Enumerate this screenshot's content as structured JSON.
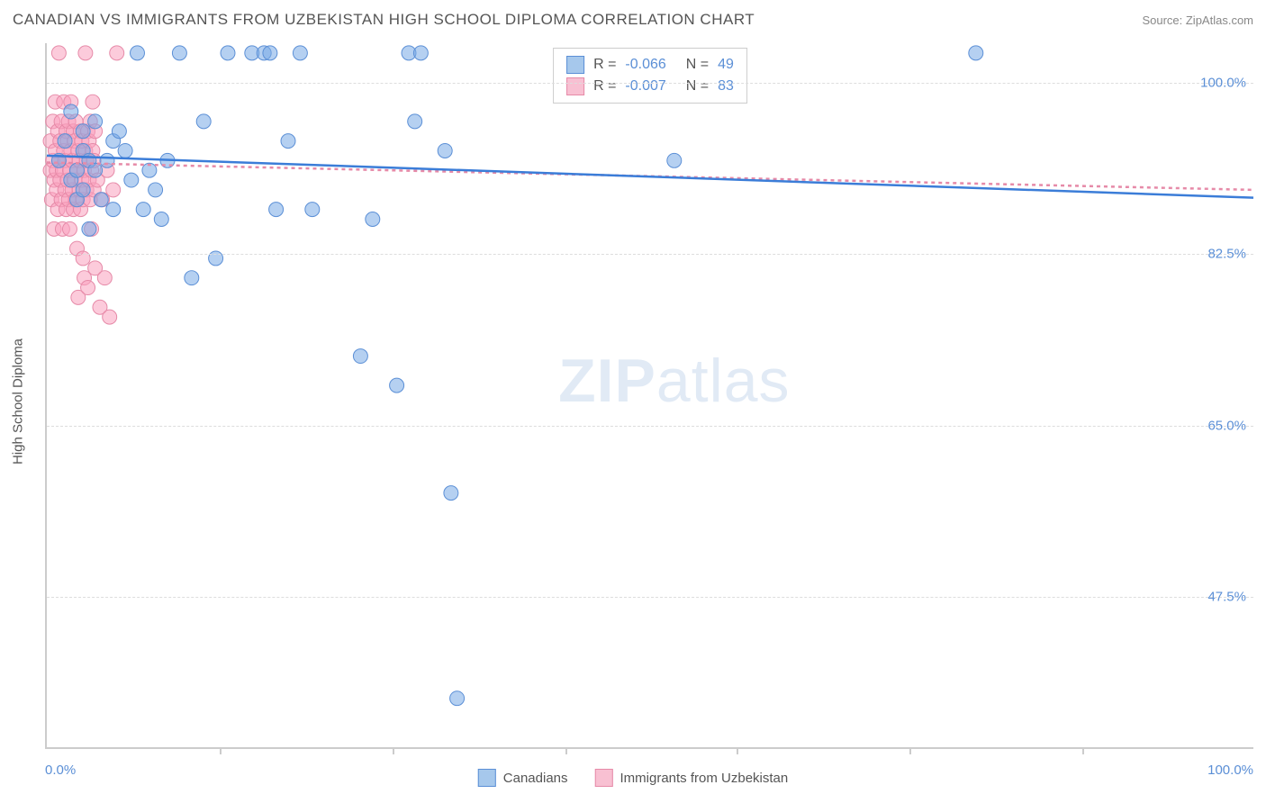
{
  "header": {
    "title": "CANADIAN VS IMMIGRANTS FROM UZBEKISTAN HIGH SCHOOL DIPLOMA CORRELATION CHART",
    "source": "Source: ZipAtlas.com"
  },
  "chart": {
    "type": "scatter",
    "ylabel": "High School Diploma",
    "xlim": [
      0,
      100
    ],
    "ylim": [
      32,
      104
    ],
    "background_color": "#ffffff",
    "grid_color": "#dddddd",
    "axis_color": "#cccccc",
    "yticks": [
      {
        "value": 47.5,
        "label": "47.5%"
      },
      {
        "value": 65.0,
        "label": "65.0%"
      },
      {
        "value": 82.5,
        "label": "82.5%"
      },
      {
        "value": 100.0,
        "label": "100.0%"
      }
    ],
    "xticks_minor": [
      14.3,
      28.6,
      42.9,
      57.1,
      71.4,
      85.7
    ],
    "xaxis_labels": {
      "min": "0.0%",
      "max": "100.0%"
    },
    "watermark": {
      "bold": "ZIP",
      "rest": "atlas"
    },
    "marker_radius": 8,
    "marker_stroke_width": 1,
    "trendline_width": 2.5,
    "series": [
      {
        "name": "Canadians",
        "fill_color": "rgba(120,170,230,0.55)",
        "stroke_color": "#5b8fd6",
        "swatch_fill": "#a6c8ec",
        "swatch_border": "#5b8fd6",
        "R": "-0.066",
        "N": "49",
        "trendline": {
          "x1": 0,
          "y1": 92.5,
          "x2": 100,
          "y2": 88.2,
          "color": "#3b7dd8",
          "dash": "none"
        },
        "points": [
          [
            1,
            92
          ],
          [
            1.5,
            94
          ],
          [
            2,
            90
          ],
          [
            2,
            97
          ],
          [
            2.5,
            91
          ],
          [
            2.5,
            88
          ],
          [
            3,
            93
          ],
          [
            3,
            95
          ],
          [
            3,
            89
          ],
          [
            3.5,
            92
          ],
          [
            3.5,
            85
          ],
          [
            4,
            96
          ],
          [
            4,
            91
          ],
          [
            4.5,
            88
          ],
          [
            5,
            92
          ],
          [
            5.5,
            94
          ],
          [
            5.5,
            87
          ],
          [
            6,
            95
          ],
          [
            6.5,
            93
          ],
          [
            7,
            90
          ],
          [
            7.5,
            103
          ],
          [
            8,
            87
          ],
          [
            8.5,
            91
          ],
          [
            9,
            89
          ],
          [
            9.5,
            86
          ],
          [
            10,
            92
          ],
          [
            11,
            103
          ],
          [
            12,
            80
          ],
          [
            13,
            96
          ],
          [
            14,
            82
          ],
          [
            15,
            103
          ],
          [
            17,
            103
          ],
          [
            18,
            103
          ],
          [
            18.5,
            103
          ],
          [
            19,
            87
          ],
          [
            20,
            94
          ],
          [
            21,
            103
          ],
          [
            22,
            87
          ],
          [
            26,
            72
          ],
          [
            27,
            86
          ],
          [
            29,
            69
          ],
          [
            30,
            103
          ],
          [
            31,
            103
          ],
          [
            30.5,
            96
          ],
          [
            33,
            93
          ],
          [
            33.5,
            58
          ],
          [
            34,
            37
          ],
          [
            52,
            92
          ],
          [
            77,
            103
          ]
        ]
      },
      {
        "name": "Immigrants from Uzbekistan",
        "fill_color": "rgba(250,160,190,0.55)",
        "stroke_color": "#e68aa8",
        "swatch_fill": "#f8c0d2",
        "swatch_border": "#e68aa8",
        "R": "-0.007",
        "N": "83",
        "trendline": {
          "x1": 0,
          "y1": 91.8,
          "x2": 100,
          "y2": 89.0,
          "color": "#e68aa8",
          "dash": "4,4"
        },
        "points": [
          [
            0.3,
            91
          ],
          [
            0.3,
            94
          ],
          [
            0.4,
            88
          ],
          [
            0.5,
            92
          ],
          [
            0.5,
            96
          ],
          [
            0.6,
            90
          ],
          [
            0.6,
            85
          ],
          [
            0.7,
            93
          ],
          [
            0.7,
            98
          ],
          [
            0.8,
            89
          ],
          [
            0.8,
            91
          ],
          [
            0.9,
            95
          ],
          [
            0.9,
            87
          ],
          [
            1.0,
            92
          ],
          [
            1.0,
            103
          ],
          [
            1.1,
            90
          ],
          [
            1.1,
            94
          ],
          [
            1.2,
            88
          ],
          [
            1.2,
            96
          ],
          [
            1.3,
            91
          ],
          [
            1.3,
            85
          ],
          [
            1.4,
            93
          ],
          [
            1.4,
            98
          ],
          [
            1.5,
            89
          ],
          [
            1.5,
            92
          ],
          [
            1.6,
            95
          ],
          [
            1.6,
            87
          ],
          [
            1.7,
            90
          ],
          [
            1.7,
            94
          ],
          [
            1.8,
            88
          ],
          [
            1.8,
            96
          ],
          [
            1.9,
            91
          ],
          [
            1.9,
            85
          ],
          [
            2.0,
            93
          ],
          [
            2.0,
            98
          ],
          [
            2.1,
            89
          ],
          [
            2.1,
            92
          ],
          [
            2.2,
            95
          ],
          [
            2.2,
            87
          ],
          [
            2.3,
            90
          ],
          [
            2.3,
            94
          ],
          [
            2.4,
            88
          ],
          [
            2.4,
            96
          ],
          [
            2.5,
            91
          ],
          [
            2.5,
            83
          ],
          [
            2.6,
            93
          ],
          [
            2.6,
            78
          ],
          [
            2.7,
            89
          ],
          [
            2.7,
            92
          ],
          [
            2.8,
            95
          ],
          [
            2.8,
            87
          ],
          [
            2.9,
            90
          ],
          [
            2.9,
            94
          ],
          [
            3.0,
            88
          ],
          [
            3.0,
            82
          ],
          [
            3.1,
            91
          ],
          [
            3.1,
            80
          ],
          [
            3.2,
            93
          ],
          [
            3.2,
            103
          ],
          [
            3.3,
            89
          ],
          [
            3.3,
            92
          ],
          [
            3.4,
            95
          ],
          [
            3.4,
            79
          ],
          [
            3.5,
            90
          ],
          [
            3.5,
            94
          ],
          [
            3.6,
            88
          ],
          [
            3.6,
            96
          ],
          [
            3.7,
            91
          ],
          [
            3.7,
            85
          ],
          [
            3.8,
            93
          ],
          [
            3.8,
            98
          ],
          [
            3.9,
            89
          ],
          [
            3.9,
            92
          ],
          [
            4.0,
            95
          ],
          [
            4.0,
            81
          ],
          [
            4.2,
            90
          ],
          [
            4.4,
            77
          ],
          [
            4.6,
            88
          ],
          [
            4.8,
            80
          ],
          [
            5.0,
            91
          ],
          [
            5.2,
            76
          ],
          [
            5.5,
            89
          ],
          [
            5.8,
            103
          ]
        ]
      }
    ],
    "stats_box": {
      "label_R": "R =",
      "label_N": "N ="
    },
    "bottom_legend": [
      {
        "label": "Canadians",
        "series_idx": 0
      },
      {
        "label": "Immigrants from Uzbekistan",
        "series_idx": 1
      }
    ]
  }
}
